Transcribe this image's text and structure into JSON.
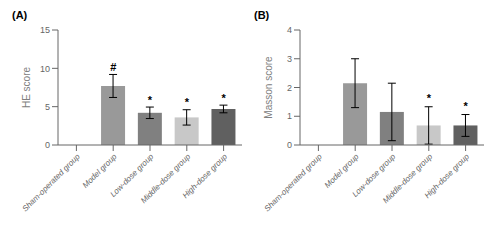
{
  "chart_data": [
    {
      "type": "bar",
      "title": "(A)",
      "ylabel": "HE score",
      "categories": [
        "Sham-operated group",
        "Model group",
        "Low-dose group",
        "Middle-dose group",
        "High-dose group"
      ],
      "values": [
        null,
        7.7,
        4.2,
        3.6,
        4.7
      ],
      "errors": [
        null,
        1.5,
        0.75,
        1.0,
        0.5
      ],
      "colors": [
        null,
        "#999999",
        "#808080",
        "#c8c8c8",
        "#606060"
      ],
      "annotations": [
        {
          "text": "#",
          "x": "Model group",
          "y": 9.4
        },
        {
          "text": "*",
          "x": "Low-dose group",
          "y": 5.1
        },
        {
          "text": "*",
          "x": "Middle-dose group",
          "y": 4.8
        },
        {
          "text": "*",
          "x": "High-dose group",
          "y": 5.3
        }
      ],
      "ylim": [
        0,
        15
      ],
      "yticks": [
        0,
        5,
        10,
        15
      ],
      "grid": false
    },
    {
      "type": "bar",
      "title": "(B)",
      "ylabel": "Masson score",
      "categories": [
        "Sham-operated group",
        "Model group",
        "Low-dose group",
        "Middle-dose group",
        "High-dose group"
      ],
      "values": [
        null,
        2.15,
        1.15,
        0.68,
        0.68
      ],
      "errors": [
        null,
        0.85,
        1.0,
        0.65,
        0.38
      ],
      "colors": [
        null,
        "#999999",
        "#808080",
        "#c8c8c8",
        "#606060"
      ],
      "annotations": [
        {
          "text": "*",
          "x": "Middle-dose group",
          "y": 1.42
        },
        {
          "text": "*",
          "x": "High-dose group",
          "y": 1.15
        }
      ],
      "ylim": [
        0,
        4
      ],
      "yticks": [
        0,
        1,
        2,
        3,
        4
      ],
      "grid": false
    }
  ]
}
